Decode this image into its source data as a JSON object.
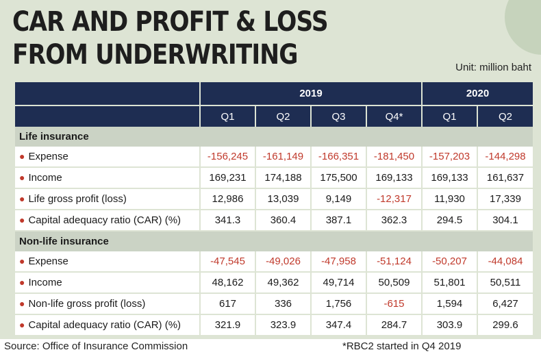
{
  "title_line1": "CAR AND PROFIT & LOSS",
  "title_line2": "FROM UNDERWRITING",
  "unit": "Unit: million baht",
  "years": [
    "2019",
    "2020"
  ],
  "quarters": [
    "Q1",
    "Q2",
    "Q3",
    "Q4*",
    "Q1",
    "Q2"
  ],
  "sections": [
    {
      "name": "Life insurance",
      "rows": [
        {
          "label": "Expense",
          "values": [
            "-156,245",
            "-161,149",
            "-166,351",
            "-181,450",
            "-157,203",
            "-144,298"
          ]
        },
        {
          "label": "Income",
          "values": [
            "169,231",
            "174,188",
            "175,500",
            "169,133",
            "169,133",
            "161,637"
          ]
        },
        {
          "label": "Life gross profit (loss)",
          "values": [
            "12,986",
            "13,039",
            "9,149",
            "-12,317",
            "11,930",
            "17,339"
          ]
        },
        {
          "label": "Capital adequacy ratio (CAR) (%)",
          "values": [
            "341.3",
            "360.4",
            "387.1",
            "362.3",
            "294.5",
            "304.1"
          ]
        }
      ]
    },
    {
      "name": "Non-life insurance",
      "rows": [
        {
          "label": "Expense",
          "values": [
            "-47,545",
            "-49,026",
            "-47,958",
            "-51,124",
            "-50,207",
            "-44,084"
          ]
        },
        {
          "label": "Income",
          "values": [
            "48,162",
            "49,362",
            "49,714",
            "50,509",
            "51,801",
            "50,511"
          ]
        },
        {
          "label": "Non-life gross profit (loss)",
          "values": [
            "617",
            "336",
            "1,756",
            "-615",
            "1,594",
            "6,427"
          ]
        },
        {
          "label": "Capital adequacy ratio (CAR) (%)",
          "values": [
            "321.9",
            "323.9",
            "347.4",
            "284.7",
            "303.9",
            "299.6"
          ]
        }
      ]
    }
  ],
  "source": "Source: Office of Insurance Commission",
  "footnote": "*RBC2 started in Q4 2019",
  "colors": {
    "header": "#1e2d52",
    "negative": "#c0392b",
    "panel": "#dde4d4"
  },
  "chart_data": {
    "type": "table",
    "title": "CAR AND PROFIT & LOSS FROM UNDERWRITING",
    "unit": "million baht",
    "columns": [
      "2019 Q1",
      "2019 Q2",
      "2019 Q3",
      "2019 Q4*",
      "2020 Q1",
      "2020 Q2"
    ],
    "series": [
      {
        "name": "Life insurance - Expense",
        "values": [
          -156245,
          -161149,
          -166351,
          -181450,
          -157203,
          -144298
        ]
      },
      {
        "name": "Life insurance - Income",
        "values": [
          169231,
          174188,
          175500,
          169133,
          169133,
          161637
        ]
      },
      {
        "name": "Life gross profit (loss)",
        "values": [
          12986,
          13039,
          9149,
          -12317,
          11930,
          17339
        ]
      },
      {
        "name": "Life insurance - Capital adequacy ratio (CAR) (%)",
        "values": [
          341.3,
          360.4,
          387.1,
          362.3,
          294.5,
          304.1
        ]
      },
      {
        "name": "Non-life insurance - Expense",
        "values": [
          -47545,
          -49026,
          -47958,
          -51124,
          -50207,
          -44084
        ]
      },
      {
        "name": "Non-life insurance - Income",
        "values": [
          48162,
          49362,
          49714,
          50509,
          51801,
          50511
        ]
      },
      {
        "name": "Non-life gross profit (loss)",
        "values": [
          617,
          336,
          1756,
          -615,
          1594,
          6427
        ]
      },
      {
        "name": "Non-life insurance - Capital adequacy ratio (CAR) (%)",
        "values": [
          321.9,
          323.9,
          347.4,
          284.7,
          303.9,
          299.6
        ]
      }
    ]
  }
}
